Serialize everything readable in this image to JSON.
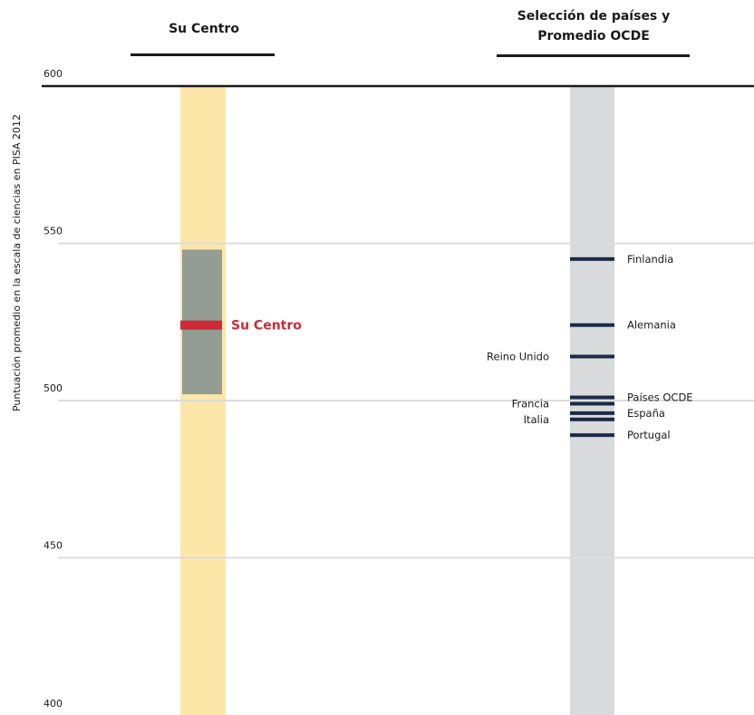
{
  "chart_data": {
    "type": "range",
    "ylabel": "Puntuación promedio en la escala de ciencias en PISA 2012",
    "ylim": [
      400,
      600
    ],
    "yticks": [
      600,
      550,
      500,
      450,
      400
    ],
    "gridlines": [
      550,
      500,
      450
    ],
    "panels": [
      {
        "header": "Su Centro",
        "range": [
          502,
          548
        ],
        "value": 524,
        "value_label": "Su Centro",
        "colors": {
          "column": "#fce7a8",
          "range": "#949d93",
          "marker": "#cc2a36"
        }
      },
      {
        "header_line1": "Selección de países y",
        "header_line2": "Promedio OCDE",
        "colors": {
          "column": "#d9dadc",
          "marker": "#1b2a47"
        },
        "entries": [
          {
            "label": "Finlandia",
            "value": 545,
            "side": "right"
          },
          {
            "label": "Alemania",
            "value": 524,
            "side": "right"
          },
          {
            "label": "Reino Unido",
            "value": 514,
            "side": "left"
          },
          {
            "label": "Francia",
            "value": 499,
            "side": "left"
          },
          {
            "label": "Países OCDE",
            "value": 501,
            "side": "right"
          },
          {
            "label": "España",
            "value": 496,
            "side": "right"
          },
          {
            "label": "Italia",
            "value": 494,
            "side": "left"
          },
          {
            "label": "Portugal",
            "value": 489,
            "side": "right"
          }
        ]
      }
    ]
  }
}
